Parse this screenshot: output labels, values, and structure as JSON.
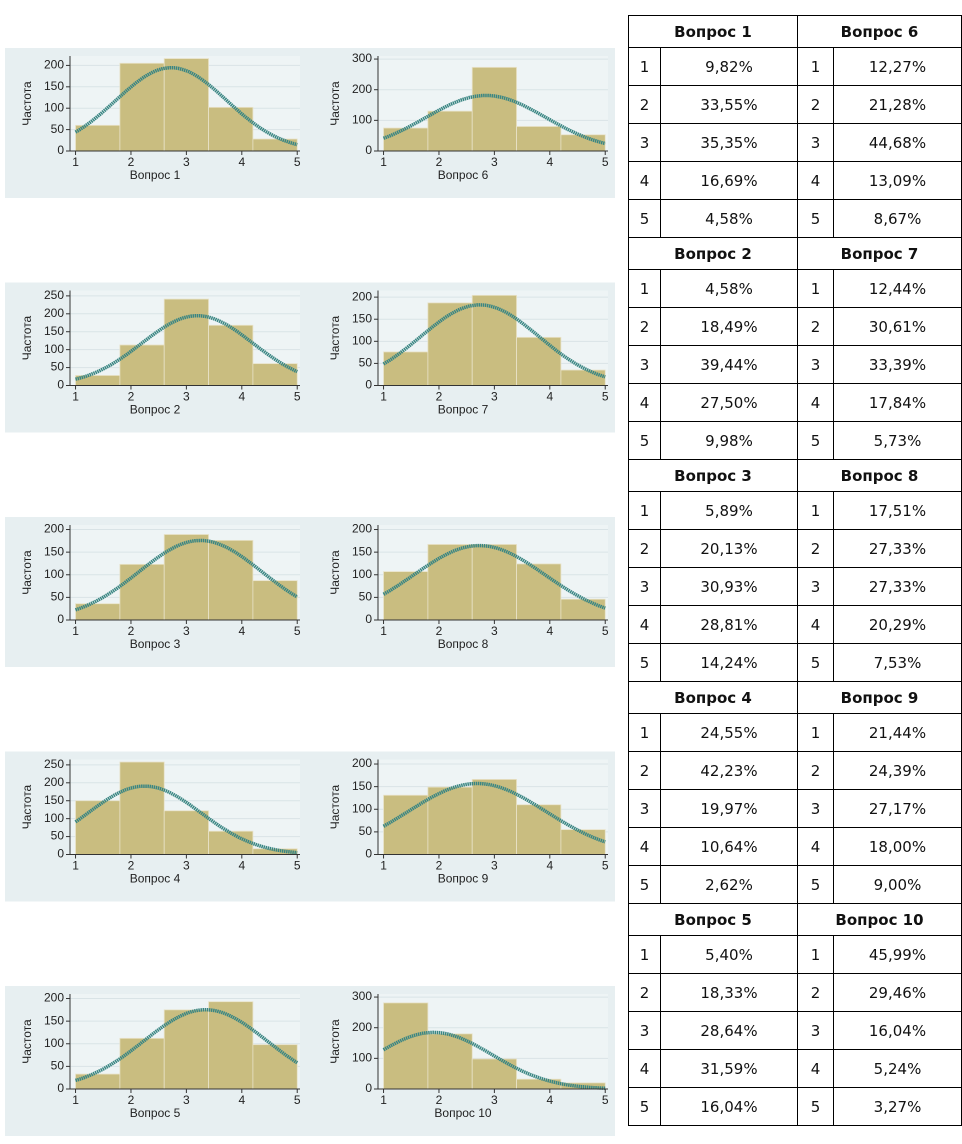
{
  "chart_data": [
    {
      "type": "histogram",
      "xlabel": "Вопрос 1",
      "ylabel": "Частота",
      "bins": [
        1,
        1.8,
        2.6,
        3.4,
        4.2,
        5
      ],
      "values": [
        60,
        205,
        216,
        102,
        28
      ],
      "xlim": [
        0.9,
        5.05
      ],
      "xticks": [
        1,
        2,
        3,
        4,
        5
      ],
      "ylim": [
        0,
        222
      ],
      "yticks": [
        0,
        50,
        100,
        150,
        200
      ],
      "color": "#c9bd80",
      "fit": "normal",
      "fit_color": "#3a8683",
      "grid": true
    },
    {
      "type": "histogram",
      "xlabel": "Вопрос 6",
      "ylabel": "Частота",
      "bins": [
        1,
        1.8,
        2.6,
        3.4,
        4.2,
        5
      ],
      "values": [
        75,
        130,
        273,
        80,
        53
      ],
      "xlim": [
        0.9,
        5.05
      ],
      "xticks": [
        1,
        2,
        3,
        4,
        5
      ],
      "ylim": [
        0,
        310
      ],
      "yticks": [
        0,
        100,
        200,
        300
      ],
      "color": "#c9bd80",
      "fit": "normal",
      "fit_color": "#3a8683",
      "grid": true
    },
    {
      "type": "histogram",
      "xlabel": "Вопрос 2",
      "ylabel": "Частота",
      "bins": [
        1,
        1.8,
        2.6,
        3.4,
        4.2,
        5
      ],
      "values": [
        28,
        113,
        241,
        168,
        61
      ],
      "xlim": [
        0.9,
        5.05
      ],
      "xticks": [
        1,
        2,
        3,
        4,
        5
      ],
      "ylim": [
        0,
        265
      ],
      "yticks": [
        0,
        50,
        100,
        150,
        200,
        250
      ],
      "color": "#c9bd80",
      "fit": "normal",
      "fit_color": "#3a8683",
      "grid": true
    },
    {
      "type": "histogram",
      "xlabel": "Вопрос 7",
      "ylabel": "Частота",
      "bins": [
        1,
        1.8,
        2.6,
        3.4,
        4.2,
        5
      ],
      "values": [
        76,
        187,
        204,
        109,
        35
      ],
      "xlim": [
        0.9,
        5.05
      ],
      "xticks": [
        1,
        2,
        3,
        4,
        5
      ],
      "ylim": [
        0,
        215
      ],
      "yticks": [
        0,
        50,
        100,
        150,
        200
      ],
      "color": "#c9bd80",
      "fit": "normal",
      "fit_color": "#3a8683",
      "grid": true
    },
    {
      "type": "histogram",
      "xlabel": "Вопрос 3",
      "ylabel": "Частота",
      "bins": [
        1,
        1.8,
        2.6,
        3.4,
        4.2,
        5
      ],
      "values": [
        36,
        123,
        189,
        176,
        87
      ],
      "xlim": [
        0.9,
        5.05
      ],
      "xticks": [
        1,
        2,
        3,
        4,
        5
      ],
      "ylim": [
        0,
        210
      ],
      "yticks": [
        0,
        50,
        100,
        150,
        200
      ],
      "color": "#c9bd80",
      "fit": "normal",
      "fit_color": "#3a8683",
      "grid": true
    },
    {
      "type": "histogram",
      "xlabel": "Вопрос 8",
      "ylabel": "Частота",
      "bins": [
        1,
        1.8,
        2.6,
        3.4,
        4.2,
        5
      ],
      "values": [
        107,
        167,
        167,
        124,
        46
      ],
      "xlim": [
        0.9,
        5.05
      ],
      "xticks": [
        1,
        2,
        3,
        4,
        5
      ],
      "ylim": [
        0,
        210
      ],
      "yticks": [
        0,
        50,
        100,
        150,
        200
      ],
      "color": "#c9bd80",
      "fit": "normal",
      "fit_color": "#3a8683",
      "grid": true
    },
    {
      "type": "histogram",
      "xlabel": "Вопрос 4",
      "ylabel": "Частота",
      "bins": [
        1,
        1.8,
        2.6,
        3.4,
        4.2,
        5
      ],
      "values": [
        150,
        258,
        122,
        65,
        16
      ],
      "xlim": [
        0.9,
        5.05
      ],
      "xticks": [
        1,
        2,
        3,
        4,
        5
      ],
      "ylim": [
        0,
        265
      ],
      "yticks": [
        0,
        50,
        100,
        150,
        200,
        250
      ],
      "color": "#c9bd80",
      "fit": "normal",
      "fit_color": "#3a8683",
      "grid": true
    },
    {
      "type": "histogram",
      "xlabel": "Вопрос 9",
      "ylabel": "Частота",
      "bins": [
        1,
        1.8,
        2.6,
        3.4,
        4.2,
        5
      ],
      "values": [
        131,
        149,
        166,
        110,
        55
      ],
      "xlim": [
        0.9,
        5.05
      ],
      "xticks": [
        1,
        2,
        3,
        4,
        5
      ],
      "ylim": [
        0,
        210
      ],
      "yticks": [
        0,
        50,
        100,
        150,
        200
      ],
      "color": "#c9bd80",
      "fit": "normal",
      "fit_color": "#3a8683",
      "grid": true
    },
    {
      "type": "histogram",
      "xlabel": "Вопрос 5",
      "ylabel": "Частота",
      "bins": [
        1,
        1.8,
        2.6,
        3.4,
        4.2,
        5
      ],
      "values": [
        33,
        112,
        175,
        193,
        98
      ],
      "xlim": [
        0.9,
        5.05
      ],
      "xticks": [
        1,
        2,
        3,
        4,
        5
      ],
      "ylim": [
        0,
        210
      ],
      "yticks": [
        0,
        50,
        100,
        150,
        200
      ],
      "color": "#c9bd80",
      "fit": "normal",
      "fit_color": "#3a8683",
      "grid": true
    },
    {
      "type": "histogram",
      "xlabel": "Вопрос 10",
      "ylabel": "Частота",
      "bins": [
        1,
        1.8,
        2.6,
        3.4,
        4.2,
        5
      ],
      "values": [
        281,
        180,
        98,
        32,
        20
      ],
      "xlim": [
        0.9,
        5.05
      ],
      "xticks": [
        1,
        2,
        3,
        4,
        5
      ],
      "ylim": [
        0,
        310
      ],
      "yticks": [
        0,
        100,
        200,
        300
      ],
      "color": "#c9bd80",
      "fit": "normal",
      "fit_color": "#3a8683",
      "grid": true
    }
  ],
  "table": {
    "blocks": [
      {
        "headers": [
          "Вопрос 1",
          "Вопрос 6"
        ],
        "rows": [
          [
            "1",
            "9,82%",
            "1",
            "12,27%"
          ],
          [
            "2",
            "33,55%",
            "2",
            "21,28%"
          ],
          [
            "3",
            "35,35%",
            "3",
            "44,68%"
          ],
          [
            "4",
            "16,69%",
            "4",
            "13,09%"
          ],
          [
            "5",
            "4,58%",
            "5",
            "8,67%"
          ]
        ]
      },
      {
        "headers": [
          "Вопрос 2",
          "Вопрос 7"
        ],
        "rows": [
          [
            "1",
            "4,58%",
            "1",
            "12,44%"
          ],
          [
            "2",
            "18,49%",
            "2",
            "30,61%"
          ],
          [
            "3",
            "39,44%",
            "3",
            "33,39%"
          ],
          [
            "4",
            "27,50%",
            "4",
            "17,84%"
          ],
          [
            "5",
            "9,98%",
            "5",
            "5,73%"
          ]
        ]
      },
      {
        "headers": [
          "Вопрос 3",
          "Вопрос 8"
        ],
        "rows": [
          [
            "1",
            "5,89%",
            "1",
            "17,51%"
          ],
          [
            "2",
            "20,13%",
            "2",
            "27,33%"
          ],
          [
            "3",
            "30,93%",
            "3",
            "27,33%"
          ],
          [
            "4",
            "28,81%",
            "4",
            "20,29%"
          ],
          [
            "5",
            "14,24%",
            "5",
            "7,53%"
          ]
        ]
      },
      {
        "headers": [
          "Вопрос 4",
          "Вопрос 9"
        ],
        "rows": [
          [
            "1",
            "24,55%",
            "1",
            "21,44%"
          ],
          [
            "2",
            "42,23%",
            "2",
            "24,39%"
          ],
          [
            "3",
            "19,97%",
            "3",
            "27,17%"
          ],
          [
            "4",
            "10,64%",
            "4",
            "18,00%"
          ],
          [
            "5",
            "2,62%",
            "5",
            "9,00%"
          ]
        ]
      },
      {
        "headers": [
          "Вопрос 5",
          "Вопрос 10"
        ],
        "rows": [
          [
            "1",
            "5,40%",
            "1",
            "45,99%"
          ],
          [
            "2",
            "18,33%",
            "2",
            "29,46%"
          ],
          [
            "3",
            "28,64%",
            "3",
            "16,04%"
          ],
          [
            "4",
            "31,59%",
            "4",
            "5,24%"
          ],
          [
            "5",
            "16,04%",
            "5",
            "3,27%"
          ]
        ]
      }
    ]
  }
}
